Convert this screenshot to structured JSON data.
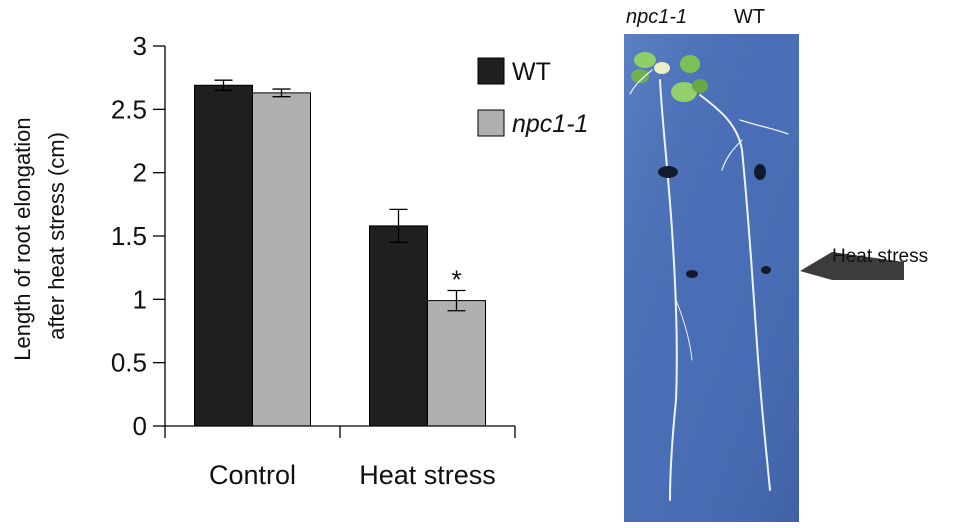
{
  "chart_data": [
    {
      "type": "bar",
      "ylabel_line1": "Length of root elongation",
      "ylabel_line2": "after heat stress (cm)",
      "categories": [
        "Control",
        "Heat stress"
      ],
      "ylim": [
        0,
        3
      ],
      "yticks": [
        "0",
        "0.5",
        "1",
        "1.5",
        "2",
        "2.5",
        "3"
      ],
      "grid": false,
      "legend_placement": "top-right",
      "series": [
        {
          "name": "WT",
          "values": [
            2.69,
            1.58
          ],
          "errors": [
            0.04,
            0.13
          ],
          "color": "#1f1f1f"
        },
        {
          "name": "npc1-1",
          "values": [
            2.63,
            0.99
          ],
          "errors": [
            0.03,
            0.08
          ],
          "color": "#b0b0b0"
        }
      ],
      "annotations": [
        {
          "text": "*",
          "series": 1,
          "category": 1
        }
      ]
    }
  ],
  "photo": {
    "labels": [
      "npc1-1",
      "WT"
    ],
    "arrow_label": "Heat stress",
    "background_color": "#4a6eb5"
  }
}
